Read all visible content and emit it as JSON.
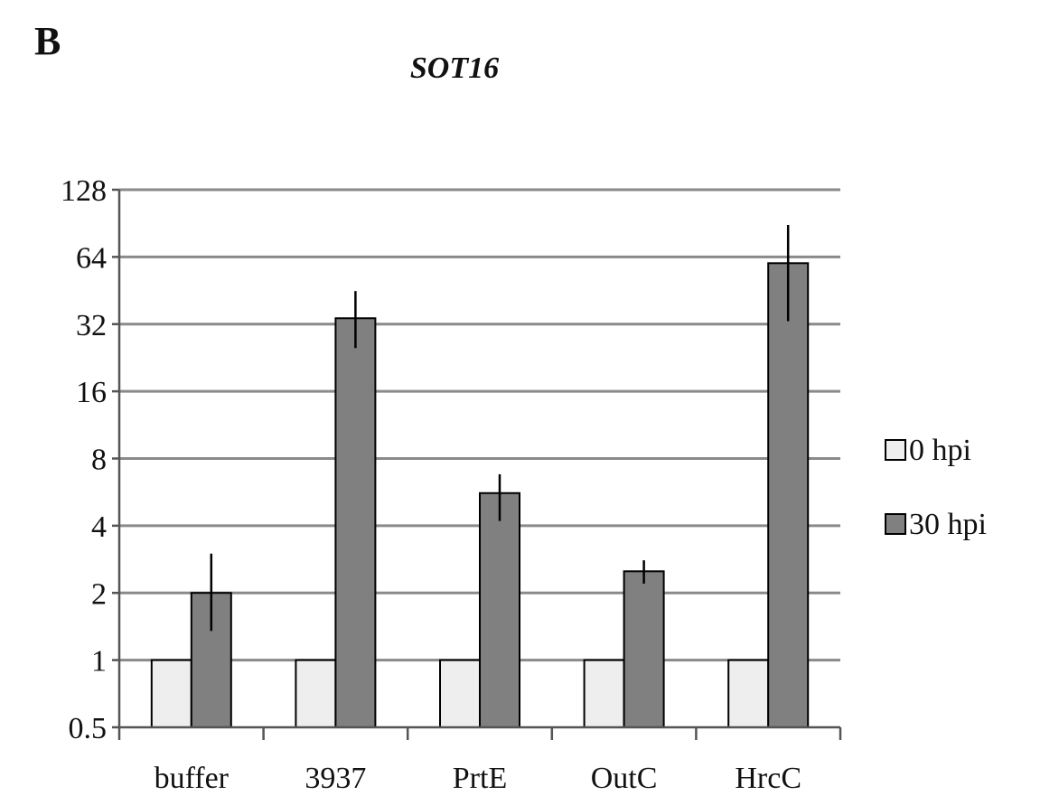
{
  "panel_label": "B",
  "chart_data": {
    "type": "bar",
    "title": "SOT16",
    "xlabel": "",
    "ylabel": "",
    "y_scale": "log2",
    "ylim": [
      0.5,
      128
    ],
    "y_ticks": [
      0.5,
      1,
      2,
      4,
      8,
      16,
      32,
      64,
      128
    ],
    "y_tick_labels": [
      "0.5",
      "1",
      "2",
      "4",
      "8",
      "16",
      "32",
      "64",
      "128"
    ],
    "grid": true,
    "legend_position": "right",
    "categories": [
      "buffer",
      "3937",
      "PrtE",
      "OutC",
      "HrcC"
    ],
    "series": [
      {
        "name": "0 hpi",
        "color": "#eeeeee",
        "values": [
          1,
          1,
          1,
          1,
          1
        ],
        "error_low": [
          1,
          1,
          1,
          1,
          1
        ],
        "error_high": [
          1,
          1,
          1,
          1,
          1
        ]
      },
      {
        "name": "30 hpi",
        "color": "#808080",
        "values": [
          2,
          34,
          5.6,
          2.5,
          60
        ],
        "error_low": [
          1.35,
          25,
          4.2,
          2.2,
          33
        ],
        "error_high": [
          3.0,
          45,
          6.8,
          2.8,
          89
        ]
      }
    ]
  }
}
